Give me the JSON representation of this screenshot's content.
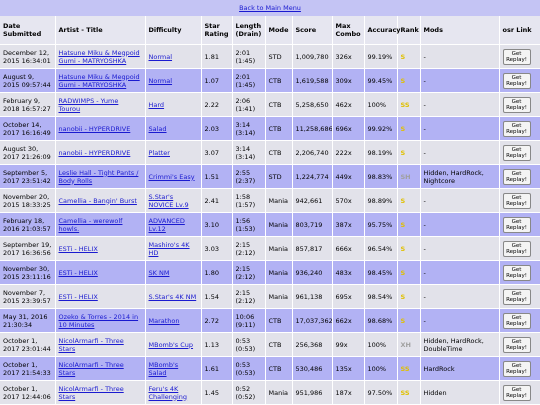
{
  "nav": {
    "back_link": "Back to Main Menu"
  },
  "table": {
    "headers": [
      "Date Submitted",
      "Artist - Title",
      "Difficulty",
      "Star Rating",
      "Length (Drain)",
      "Mode",
      "Score",
      "Max Combo",
      "Accuracy",
      "Rank",
      "Mods",
      "osr Link"
    ],
    "rows": [
      [
        "December 12, 2015 16:34:01",
        "Hatsune Miku & Megpoid Gumi - MATRYOSHKA",
        "Normal",
        "1.81",
        "2:01 (1:45)",
        "STD",
        "1,009,780",
        "326x",
        "99.19%",
        "S",
        "-",
        "Get Replay!"
      ],
      [
        "August 9, 2015 09:57:44",
        "Hatsune Miku & Megpoid Gumi - MATRYOSHKA",
        "Normal",
        "1.07",
        "2:01 (1:45)",
        "CTB",
        "1,619,588",
        "309x",
        "99.45%",
        "S",
        "-",
        "Get Replay!"
      ],
      [
        "February 9, 2018 16:57:27",
        "RADWIMPS - Yume Tourou",
        "Hard",
        "2.22",
        "2:06 (1:41)",
        "CTB",
        "5,258,650",
        "462x",
        "100%",
        "SS",
        "-",
        "Get Replay!"
      ],
      [
        "October 14, 2017 16:16:49",
        "nanobii - HYPERDRIVE",
        "Salad",
        "2.03",
        "3:14 (3:14)",
        "CTB",
        "11,258,686",
        "696x",
        "99.92%",
        "S",
        "-",
        "Get Replay!"
      ],
      [
        "August 30, 2017 21:26:09",
        "nanobii - HYPERDRIVE",
        "Platter",
        "3.07",
        "3:14 (3:14)",
        "CTB",
        "2,206,740",
        "222x",
        "98.19%",
        "S",
        "-",
        "Get Replay!"
      ],
      [
        "September 5, 2017 23:51:42",
        "Leslie Hall - Tight Pants / Body Rolls",
        "Crimmi's Easy",
        "1.51",
        "2:55 (2:37)",
        "STD",
        "1,224,774",
        "449x",
        "98.83%",
        "SH",
        "Hidden, HardRock, Nightcore",
        "Get Replay!"
      ],
      [
        "November 20, 2015 18:33:25",
        "Camellia - Bangin' Burst",
        "S.Star's NOVICE Lv.9",
        "2.41",
        "1:58 (1:57)",
        "Mania",
        "942,661",
        "570x",
        "98.89%",
        "S",
        "-",
        "Get Replay!"
      ],
      [
        "February 18, 2016 21:03:57",
        "Camellia - werewolf howls.",
        "ADVANCED Lv.12",
        "3.10",
        "1:56 (1:53)",
        "Mania",
        "803,719",
        "387x",
        "95.75%",
        "S",
        "-",
        "Get Replay!"
      ],
      [
        "September 19, 2017 16:36:56",
        "ESTi - HELIX",
        "Mashiro's 4K HD",
        "3.03",
        "2:15 (2:12)",
        "Mania",
        "857,817",
        "666x",
        "96.54%",
        "S",
        "-",
        "Get Replay!"
      ],
      [
        "November 30, 2015 23:11:16",
        "ESTi - HELIX",
        "SK NM",
        "1.80",
        "2:15 (2:12)",
        "Mania",
        "936,240",
        "483x",
        "98.45%",
        "S",
        "-",
        "Get Replay!"
      ],
      [
        "November 7, 2015 23:39:57",
        "ESTi - HELIX",
        "S.Star's 4K NM",
        "1.54",
        "2:15 (2:12)",
        "Mania",
        "961,138",
        "695x",
        "98.54%",
        "S",
        "-",
        "Get Replay!"
      ],
      [
        "May 31, 2016 21:30:34",
        "Ozeko & Torres - 2014 in 10 Minutes",
        "Marathon",
        "2.72",
        "10:06 (9:11)",
        "CTB",
        "17,037,362",
        "662x",
        "98.68%",
        "S",
        "-",
        "Get Replay!"
      ],
      [
        "October 1, 2017 23:01:44",
        "NicolArmarfi - Three Stars",
        "MBomb's Cup",
        "1.13",
        "0:53 (0:53)",
        "CTB",
        "256,368",
        "99x",
        "100%",
        "XH",
        "Hidden, HardRock, DoubleTime",
        "Get Replay!"
      ],
      [
        "October 1, 2017 21:54:33",
        "NicolArmarfi - Three Stars",
        "MBomb's Salad",
        "1.61",
        "0:53 (0:53)",
        "CTB",
        "530,486",
        "135x",
        "100%",
        "SS",
        "HardRock",
        "Get Replay!"
      ],
      [
        "October 1, 2017 12:44:06",
        "NicolArmarfi - Three Stars",
        "Feru's 4K Challenging",
        "1.45",
        "0:52 (0:52)",
        "Mania",
        "951,986",
        "187x",
        "97.50%",
        "SS",
        "Hidden",
        "Get Replay!"
      ]
    ]
  }
}
